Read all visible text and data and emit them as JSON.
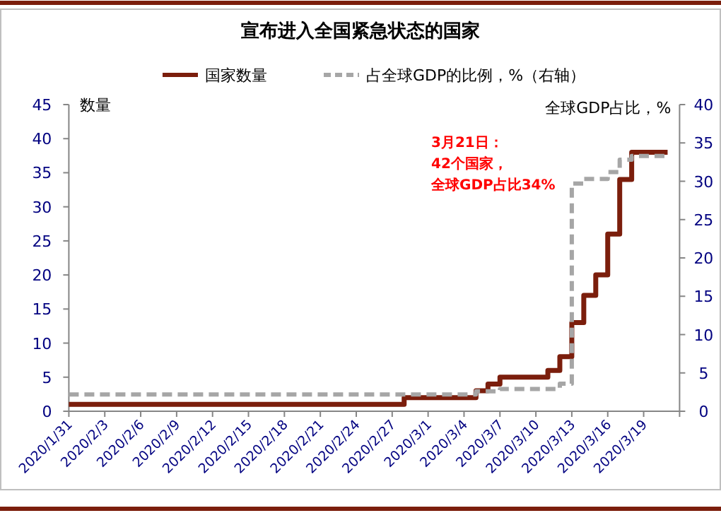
{
  "chart_data": {
    "type": "step",
    "title": "宣布进入全国紧急状态的国家",
    "ylabel": "数量",
    "y2label": "全球GDP占比，%",
    "legend": "top",
    "grid": false,
    "xlim": [
      "2020-01-31",
      "2020-03-22"
    ],
    "xticks": [
      {
        "value": "2020-01-31",
        "label": "2020/1/31"
      },
      {
        "value": "2020-02-03",
        "label": "2020/2/3"
      },
      {
        "value": "2020-02-06",
        "label": "2020/2/6"
      },
      {
        "value": "2020-02-09",
        "label": "2020/2/9"
      },
      {
        "value": "2020-02-12",
        "label": "2020/2/12"
      },
      {
        "value": "2020-02-15",
        "label": "2020/2/15"
      },
      {
        "value": "2020-02-18",
        "label": "2020/2/18"
      },
      {
        "value": "2020-02-21",
        "label": "2020/2/21"
      },
      {
        "value": "2020-02-24",
        "label": "2020/2/24"
      },
      {
        "value": "2020-02-27",
        "label": "2020/2/27"
      },
      {
        "value": "2020-03-01",
        "label": "2020/3/1"
      },
      {
        "value": "2020-03-04",
        "label": "2020/3/4"
      },
      {
        "value": "2020-03-07",
        "label": "2020/3/7"
      },
      {
        "value": "2020-03-10",
        "label": "2020/3/10"
      },
      {
        "value": "2020-03-13",
        "label": "2020/3/13"
      },
      {
        "value": "2020-03-16",
        "label": "2020/3/16"
      },
      {
        "value": "2020-03-19",
        "label": "2020/3/19"
      },
      {
        "value": "2020-03-22",
        "label": null
      }
    ],
    "ylim": [
      0,
      45
    ],
    "yticks": [
      0,
      5,
      10,
      15,
      20,
      25,
      30,
      35,
      40,
      45
    ],
    "y2lim": [
      0,
      40
    ],
    "y2ticks": [
      0,
      5,
      10,
      15,
      20,
      25,
      30,
      35,
      40
    ],
    "annotations": [
      "3月21日：",
      "42个国家，",
      "全球GDP占比34%"
    ],
    "series": [
      {
        "name": "国家数量",
        "color": "#7b1e0c",
        "line_style": "solid",
        "x": [
          "2020-01-31",
          "2020-02-28",
          "2020-03-05",
          "2020-03-06",
          "2020-03-07",
          "2020-03-11",
          "2020-03-12",
          "2020-03-13",
          "2020-03-14",
          "2020-03-15",
          "2020-03-16",
          "2020-03-17",
          "2020-03-18",
          "2020-03-21"
        ],
        "values": [
          1,
          2,
          3,
          4,
          5,
          6,
          8,
          13,
          17,
          20,
          26,
          34,
          38,
          38
        ]
      },
      {
        "name": "占全球GDP的比例，%（右轴）",
        "color": "#a6a6a6",
        "line_style": "dashed",
        "axis": "y2",
        "x": [
          "2020-01-31",
          "2020-03-05",
          "2020-03-07",
          "2020-03-12",
          "2020-03-13",
          "2020-03-14",
          "2020-03-16",
          "2020-03-17",
          "2020-03-18",
          "2020-03-21"
        ],
        "values": [
          2.2,
          2.6,
          2.9,
          3.6,
          29.7,
          30.3,
          31.2,
          32.8,
          33.3,
          33.3
        ]
      }
    ]
  }
}
